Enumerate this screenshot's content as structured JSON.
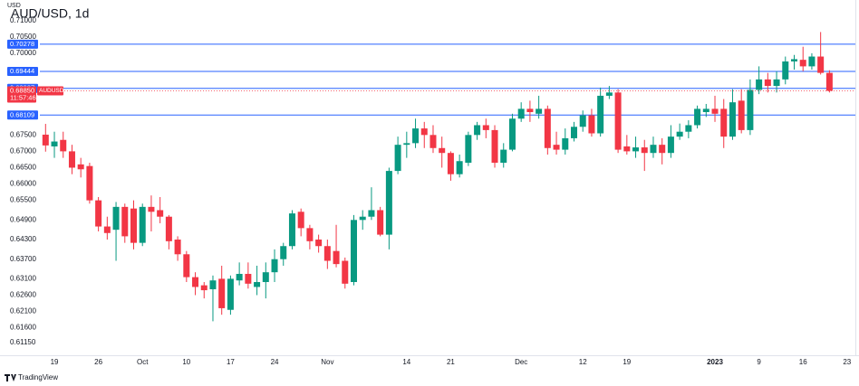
{
  "chart_data": {
    "type": "candlestick",
    "title": "AUD/USD, 1d",
    "currency": "USD",
    "symbol_tag": "AUDUSD",
    "countdown": "11:57:46",
    "brand": "TradingView",
    "up_color": "#089981",
    "down_color": "#f23645",
    "level_color": "#2962ff",
    "ylim": [
      0.6076,
      0.7163
    ],
    "yticks": [
      {
        "value": 0.71,
        "label": "0.71000"
      },
      {
        "value": 0.705,
        "label": "0.70500"
      },
      {
        "value": 0.7,
        "label": "0.70000"
      },
      {
        "value": 0.675,
        "label": "0.67500"
      },
      {
        "value": 0.67,
        "label": "0.67000"
      },
      {
        "value": 0.665,
        "label": "0.66500"
      },
      {
        "value": 0.66,
        "label": "0.66000"
      },
      {
        "value": 0.655,
        "label": "0.65500"
      },
      {
        "value": 0.649,
        "label": "0.64900"
      },
      {
        "value": 0.643,
        "label": "0.64300"
      },
      {
        "value": 0.637,
        "label": "0.63700"
      },
      {
        "value": 0.631,
        "label": "0.63100"
      },
      {
        "value": 0.626,
        "label": "0.62600"
      },
      {
        "value": 0.621,
        "label": "0.62100"
      },
      {
        "value": 0.616,
        "label": "0.61600"
      },
      {
        "value": 0.6115,
        "label": "0.61150"
      }
    ],
    "levels": [
      0.70278,
      0.69444,
      0.68927,
      0.68109
    ],
    "last_price": {
      "value": 0.6885,
      "label": "0.68850"
    },
    "categories": [
      null,
      "19",
      null,
      null,
      null,
      null,
      "26",
      null,
      null,
      null,
      null,
      "Oct",
      null,
      null,
      null,
      null,
      "10",
      null,
      null,
      null,
      null,
      "17",
      null,
      null,
      null,
      null,
      "24",
      null,
      null,
      null,
      null,
      null,
      "Nov",
      null,
      null,
      null,
      null,
      null,
      null,
      null,
      null,
      "14",
      null,
      null,
      null,
      null,
      "21",
      null,
      null,
      null,
      null,
      null,
      null,
      null,
      "Dec",
      null,
      null,
      null,
      null,
      null,
      null,
      "12",
      null,
      null,
      null,
      null,
      "19",
      null,
      null,
      null,
      null,
      null,
      null,
      null,
      null,
      null,
      "2023",
      null,
      null,
      null,
      null,
      "9",
      null,
      null,
      null,
      null,
      "16",
      null,
      null,
      null,
      null,
      "23"
    ],
    "open": [
      0.6751,
      0.6715,
      0.6735,
      0.67,
      0.666,
      0.6655,
      0.655,
      0.647,
      0.646,
      0.653,
      0.6525,
      0.642,
      0.653,
      0.652,
      0.65,
      0.643,
      0.6385,
      0.6315,
      0.629,
      0.6278,
      0.631,
      0.6215,
      0.6305,
      0.6325,
      0.6285,
      0.63,
      0.633,
      0.637,
      0.641,
      0.6515,
      0.6465,
      0.643,
      0.641,
      0.6395,
      0.6365,
      0.63,
      0.649,
      0.65,
      0.652,
      0.6445,
      0.664,
      0.672,
      0.6725,
      0.677,
      0.675,
      0.671,
      0.6695,
      0.663,
      0.6665,
      0.675,
      0.678,
      0.6765,
      0.6665,
      0.6705,
      0.68,
      0.683,
      0.6815,
      0.683,
      0.672,
      0.6705,
      0.674,
      0.6775,
      0.681,
      0.6755,
      0.687,
      0.688,
      0.6715,
      0.67,
      0.6712,
      0.6695,
      0.672,
      0.6695,
      0.6745,
      0.676,
      0.678,
      0.682,
      0.683,
      0.683,
      0.6745,
      0.6855,
      0.6765,
      0.6888,
      0.692,
      0.69,
      0.692,
      0.6975,
      0.698,
      0.696,
      0.699,
      0.694,
      null,
      null
    ],
    "high": [
      0.6784,
      0.676,
      0.676,
      0.672,
      0.668,
      0.6665,
      0.656,
      0.65,
      0.6545,
      0.654,
      0.655,
      0.654,
      0.6565,
      0.656,
      0.6505,
      0.644,
      0.6395,
      0.633,
      0.63,
      0.632,
      0.635,
      0.632,
      0.636,
      0.636,
      0.635,
      0.636,
      0.64,
      0.642,
      0.652,
      0.6525,
      0.6475,
      0.6445,
      0.643,
      0.6475,
      0.6375,
      0.6505,
      0.652,
      0.659,
      0.653,
      0.665,
      0.6745,
      0.676,
      0.68,
      0.679,
      0.678,
      0.6745,
      0.67,
      0.669,
      0.676,
      0.679,
      0.68,
      0.678,
      0.6725,
      0.6815,
      0.685,
      0.6855,
      0.687,
      0.684,
      0.676,
      0.677,
      0.679,
      0.6825,
      0.683,
      0.6895,
      0.69,
      0.689,
      0.675,
      0.6745,
      0.6735,
      0.6745,
      0.674,
      0.678,
      0.6785,
      0.6795,
      0.684,
      0.6845,
      0.687,
      0.686,
      0.689,
      0.689,
      0.692,
      0.696,
      0.694,
      0.6945,
      0.699,
      0.6995,
      0.702,
      0.7,
      0.7065,
      0.6948,
      null,
      null
    ],
    "low": [
      0.6699,
      0.668,
      0.668,
      0.663,
      0.662,
      0.654,
      0.6455,
      0.643,
      0.6365,
      0.642,
      0.64,
      0.641,
      0.6455,
      0.648,
      0.64,
      0.6365,
      0.63,
      0.626,
      0.625,
      0.618,
      0.62,
      0.62,
      0.629,
      0.628,
      0.626,
      0.625,
      0.63,
      0.635,
      0.64,
      0.644,
      0.64,
      0.639,
      0.634,
      0.6345,
      0.628,
      0.629,
      0.646,
      0.649,
      0.644,
      0.64,
      0.663,
      0.668,
      0.671,
      0.671,
      0.6695,
      0.665,
      0.661,
      0.662,
      0.6655,
      0.6735,
      0.674,
      0.665,
      0.665,
      0.67,
      0.679,
      0.679,
      0.68,
      0.669,
      0.669,
      0.669,
      0.673,
      0.676,
      0.6745,
      0.6745,
      0.686,
      0.6695,
      0.669,
      0.668,
      0.664,
      0.668,
      0.666,
      0.668,
      0.6735,
      0.674,
      0.677,
      0.6805,
      0.679,
      0.671,
      0.6735,
      0.6755,
      0.675,
      0.6875,
      0.688,
      0.688,
      0.6905,
      0.695,
      0.6945,
      0.695,
      0.6935,
      0.688,
      null,
      null
    ],
    "close": [
      0.6718,
      0.673,
      0.67,
      0.665,
      0.6645,
      0.655,
      0.647,
      0.645,
      0.653,
      0.644,
      0.642,
      0.653,
      0.6515,
      0.65,
      0.6425,
      0.6385,
      0.6315,
      0.6285,
      0.6275,
      0.6305,
      0.622,
      0.631,
      0.6325,
      0.6295,
      0.63,
      0.633,
      0.637,
      0.641,
      0.651,
      0.6465,
      0.6425,
      0.641,
      0.6365,
      0.6355,
      0.6295,
      0.649,
      0.65,
      0.652,
      0.6445,
      0.664,
      0.672,
      0.6725,
      0.677,
      0.675,
      0.671,
      0.6695,
      0.663,
      0.667,
      0.675,
      0.678,
      0.6765,
      0.6665,
      0.6705,
      0.68,
      0.683,
      0.682,
      0.683,
      0.671,
      0.6705,
      0.674,
      0.6775,
      0.681,
      0.6755,
      0.687,
      0.688,
      0.6705,
      0.67,
      0.6712,
      0.6695,
      0.672,
      0.6695,
      0.6745,
      0.676,
      0.678,
      0.683,
      0.683,
      0.6815,
      0.6745,
      0.685,
      0.6765,
      0.6888,
      0.692,
      0.69,
      0.692,
      0.6975,
      0.6982,
      0.696,
      0.699,
      0.694,
      0.6885,
      null,
      null
    ]
  }
}
